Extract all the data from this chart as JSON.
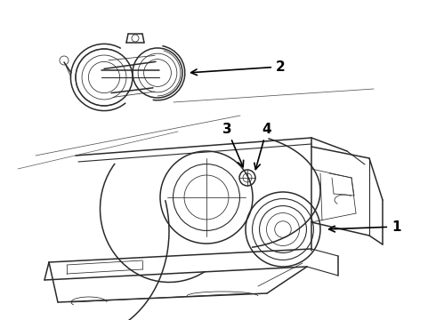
{
  "background_color": "#ffffff",
  "line_color": "#2a2a2a",
  "label_color": "#000000",
  "figsize": [
    4.9,
    3.6
  ],
  "dpi": 100,
  "lw_main": 1.1,
  "lw_thin": 0.55,
  "lw_med": 0.8
}
